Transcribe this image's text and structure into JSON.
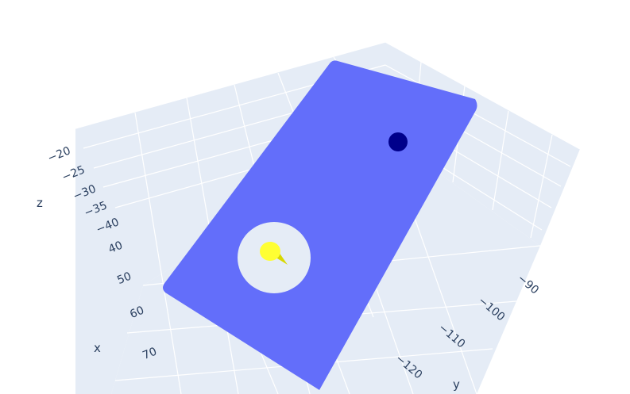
{
  "chart_data": {
    "type": "3d-scatter-mesh",
    "title": "",
    "scene": {
      "background": "#e5ecf6",
      "grid_color": "#ffffff",
      "grid": true
    },
    "axes": {
      "x": {
        "label": "x",
        "ticks": [
          "40",
          "50",
          "60",
          "70"
        ],
        "range": [
          35,
          75
        ]
      },
      "y": {
        "label": "y",
        "ticks": [
          "−90",
          "−100",
          "−110",
          "−120"
        ],
        "range": [
          -125,
          -85
        ]
      },
      "z": {
        "label": "z",
        "ticks": [
          "−20",
          "−25",
          "−30",
          "−35",
          "−40"
        ],
        "range": [
          -42,
          -18
        ]
      }
    },
    "series": [
      {
        "kind": "plane",
        "color": "#636efa"
      },
      {
        "kind": "marker",
        "color": "#00008b"
      },
      {
        "kind": "cone",
        "color": "#ffff33"
      }
    ]
  }
}
